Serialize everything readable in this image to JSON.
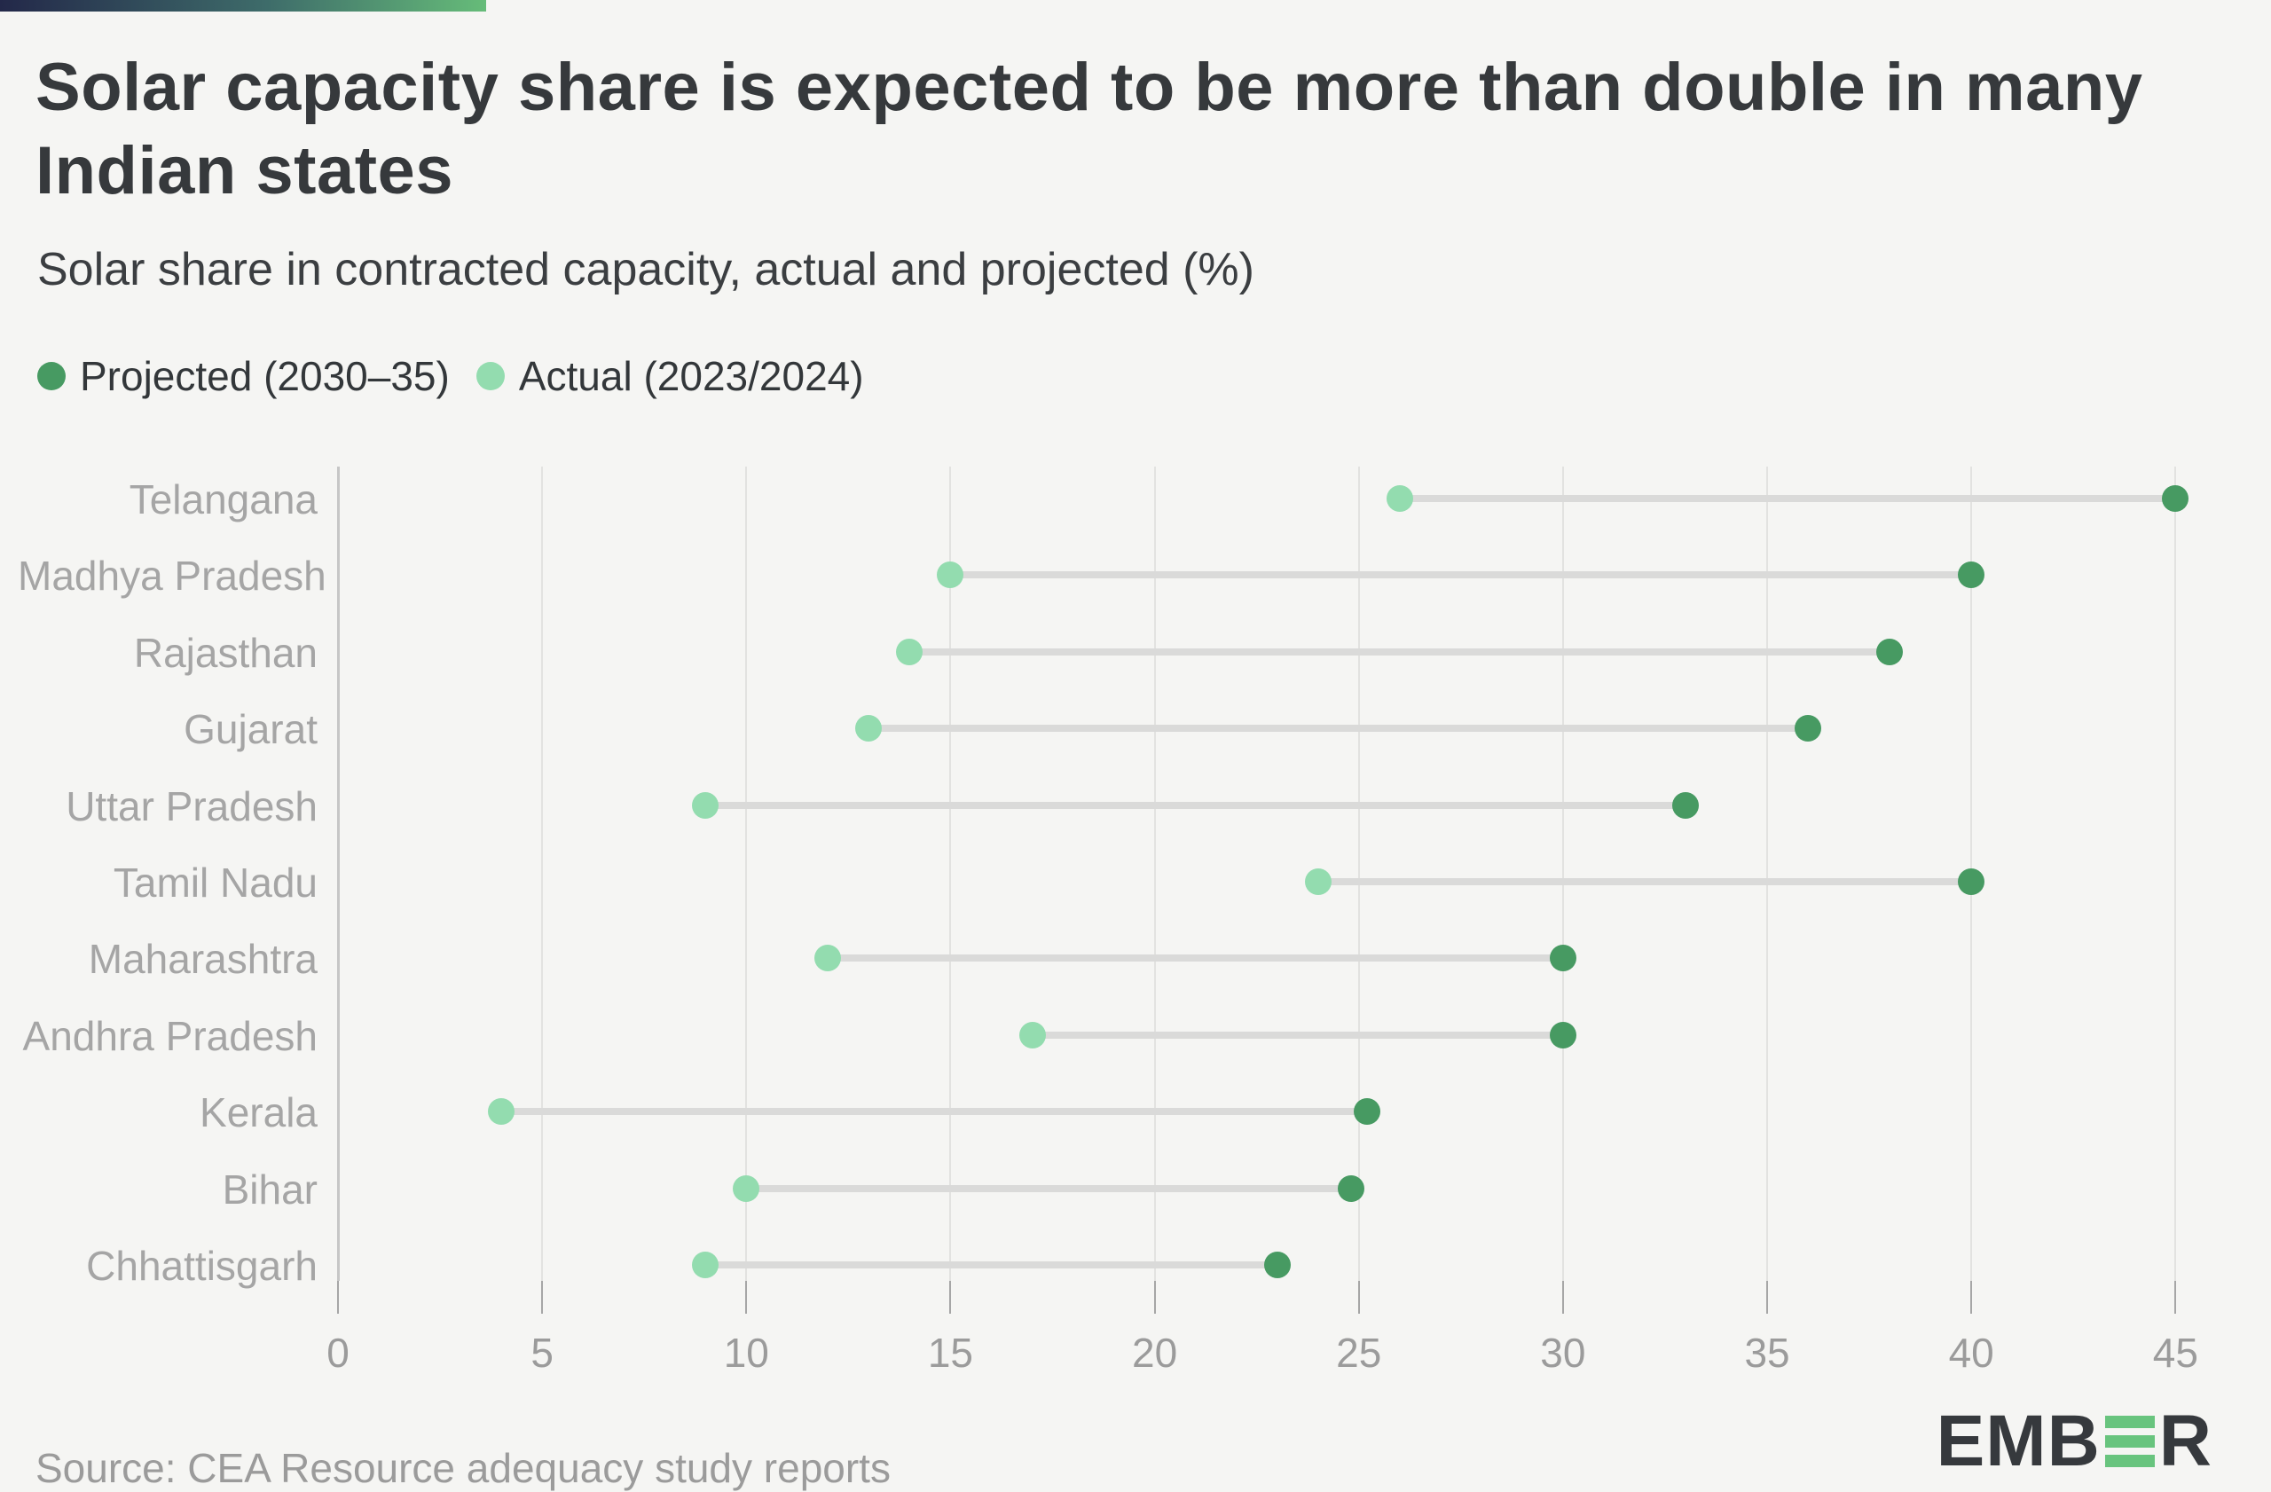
{
  "header": {
    "title_lines": [
      "Solar capacity share is expected to be more than double in many",
      "Indian states"
    ],
    "subtitle": "Solar share in contracted capacity, actual and projected (%)"
  },
  "legend": [
    {
      "label": "Projected (2030–35)",
      "color": "#479a62"
    },
    {
      "label": "Actual (2023/2024)",
      "color": "#93dcaf"
    }
  ],
  "chart_data": {
    "type": "scatter",
    "variant": "dumbbell",
    "title": "Solar capacity share is expected to be more than double in many Indian states",
    "subtitle": "Solar share in contracted capacity, actual and projected (%)",
    "categories": [
      "Telangana",
      "Madhya Pradesh",
      "Rajasthan",
      "Gujarat",
      "Uttar Pradesh",
      "Tamil Nadu",
      "Maharashtra",
      "Andhra Pradesh",
      "Kerala",
      "Bihar",
      "Chhattisgarh"
    ],
    "series": [
      {
        "name": "Projected (2030–35)",
        "color": "#479a62",
        "values": [
          45,
          40,
          38,
          36,
          33,
          40,
          30,
          30,
          25.2,
          24.8,
          23
        ]
      },
      {
        "name": "Actual (2023/2024)",
        "color": "#93dcaf",
        "values": [
          26,
          15,
          14,
          13,
          9,
          24,
          12,
          17,
          4,
          10,
          9
        ]
      }
    ],
    "xlabel": "",
    "ylabel": "",
    "xticks": [
      0,
      5,
      10,
      15,
      20,
      25,
      30,
      35,
      40,
      45
    ],
    "xlim": [
      0,
      47
    ],
    "grid": "vertical",
    "legend_position": "top-left"
  },
  "footer": {
    "source": "Source: CEA Resource adequacy study reports",
    "logo_prefix": "EMB",
    "logo_suffix": "R"
  },
  "colors": {
    "background": "#f5f5f3",
    "projected": "#479a62",
    "actual": "#93dcaf",
    "connector": "#dadad9",
    "gridline": "#e2e2e0",
    "accent_bar_start": "#232849",
    "accent_bar_end": "#66bc79"
  }
}
